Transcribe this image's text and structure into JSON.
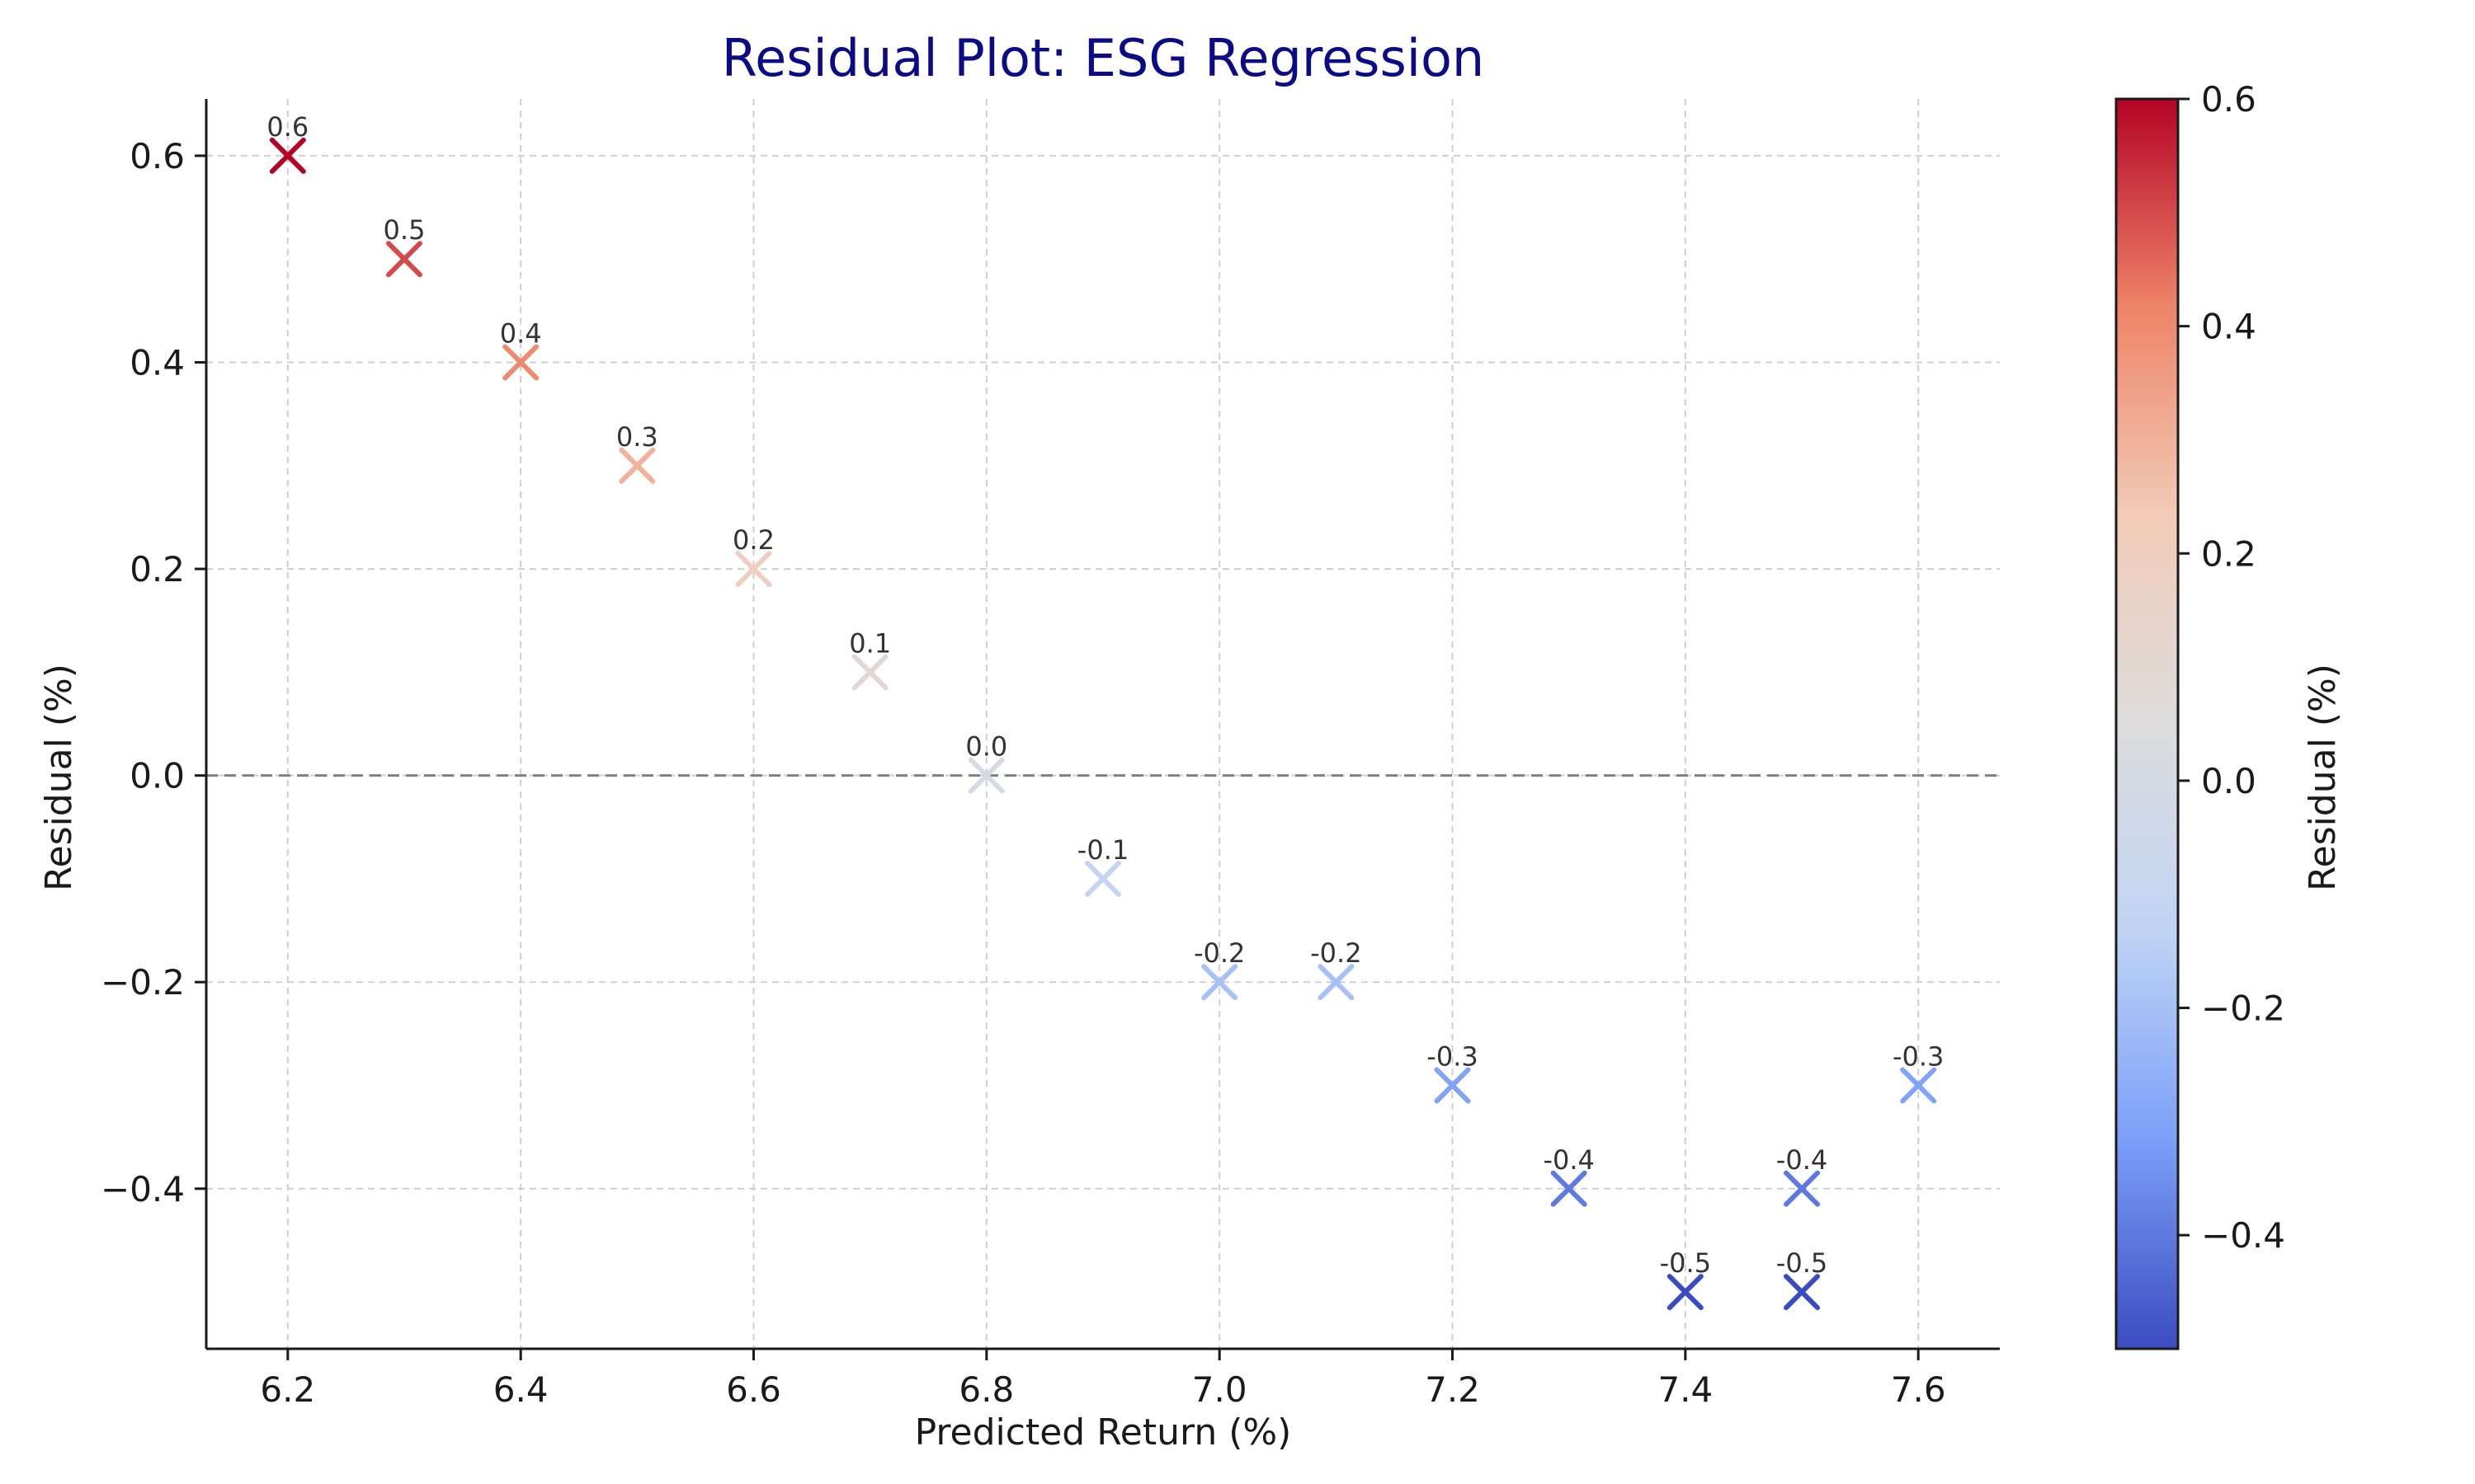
{
  "chart_data": {
    "type": "scatter",
    "title": "Residual Plot: ESG Regression",
    "xlabel": "Predicted Return (%)",
    "ylabel": "Residual (%)",
    "xlim": [
      6.13,
      7.67
    ],
    "ylim": [
      -0.555,
      0.655
    ],
    "xticks": [
      6.2,
      6.4,
      6.6,
      6.8,
      7.0,
      7.2,
      7.4,
      7.6
    ],
    "xtick_labels": [
      "6.2",
      "6.4",
      "6.6",
      "6.8",
      "7.0",
      "7.2",
      "7.4",
      "7.6"
    ],
    "yticks": [
      -0.4,
      -0.2,
      0.0,
      0.2,
      0.4,
      0.6
    ],
    "ytick_labels": [
      "−0.4",
      "−0.2",
      "0.0",
      "0.2",
      "0.4",
      "0.6"
    ],
    "grid": true,
    "reference_line": {
      "y": 0.0,
      "style": "dashed",
      "color": "#808080"
    },
    "marker": "x",
    "colormap": "coolwarm",
    "colormap_stops": [
      "#3b4cc0",
      "#7b9ff9",
      "#c0d4f5",
      "#dddcdc",
      "#f2cbb7",
      "#ee8468",
      "#b40426"
    ],
    "points": [
      {
        "x": 6.2,
        "y": 0.6,
        "label": "0.6"
      },
      {
        "x": 6.3,
        "y": 0.5,
        "label": "0.5"
      },
      {
        "x": 6.4,
        "y": 0.4,
        "label": "0.4"
      },
      {
        "x": 6.5,
        "y": 0.3,
        "label": "0.3"
      },
      {
        "x": 6.6,
        "y": 0.2,
        "label": "0.2"
      },
      {
        "x": 6.7,
        "y": 0.1,
        "label": "0.1"
      },
      {
        "x": 6.8,
        "y": 0.0,
        "label": "0.0"
      },
      {
        "x": 6.9,
        "y": -0.1,
        "label": "-0.1"
      },
      {
        "x": 7.0,
        "y": -0.2,
        "label": "-0.2"
      },
      {
        "x": 7.1,
        "y": -0.2,
        "label": "-0.2"
      },
      {
        "x": 7.2,
        "y": -0.3,
        "label": "-0.3"
      },
      {
        "x": 7.3,
        "y": -0.4,
        "label": "-0.4"
      },
      {
        "x": 7.4,
        "y": -0.5,
        "label": "-0.5"
      },
      {
        "x": 7.5,
        "y": -0.5,
        "label": "-0.5"
      },
      {
        "x": 7.5,
        "y": -0.4,
        "label": "-0.4"
      },
      {
        "x": 7.6,
        "y": -0.3,
        "label": "-0.3"
      }
    ],
    "colorbar": {
      "label": "Residual (%)",
      "range": [
        -0.5,
        0.6
      ],
      "ticks": [
        -0.4,
        -0.2,
        0.0,
        0.2,
        0.4,
        0.6
      ],
      "tick_labels": [
        "−0.4",
        "−0.2",
        "0.0",
        "0.2",
        "0.4",
        "0.6"
      ],
      "placement": "right"
    }
  }
}
